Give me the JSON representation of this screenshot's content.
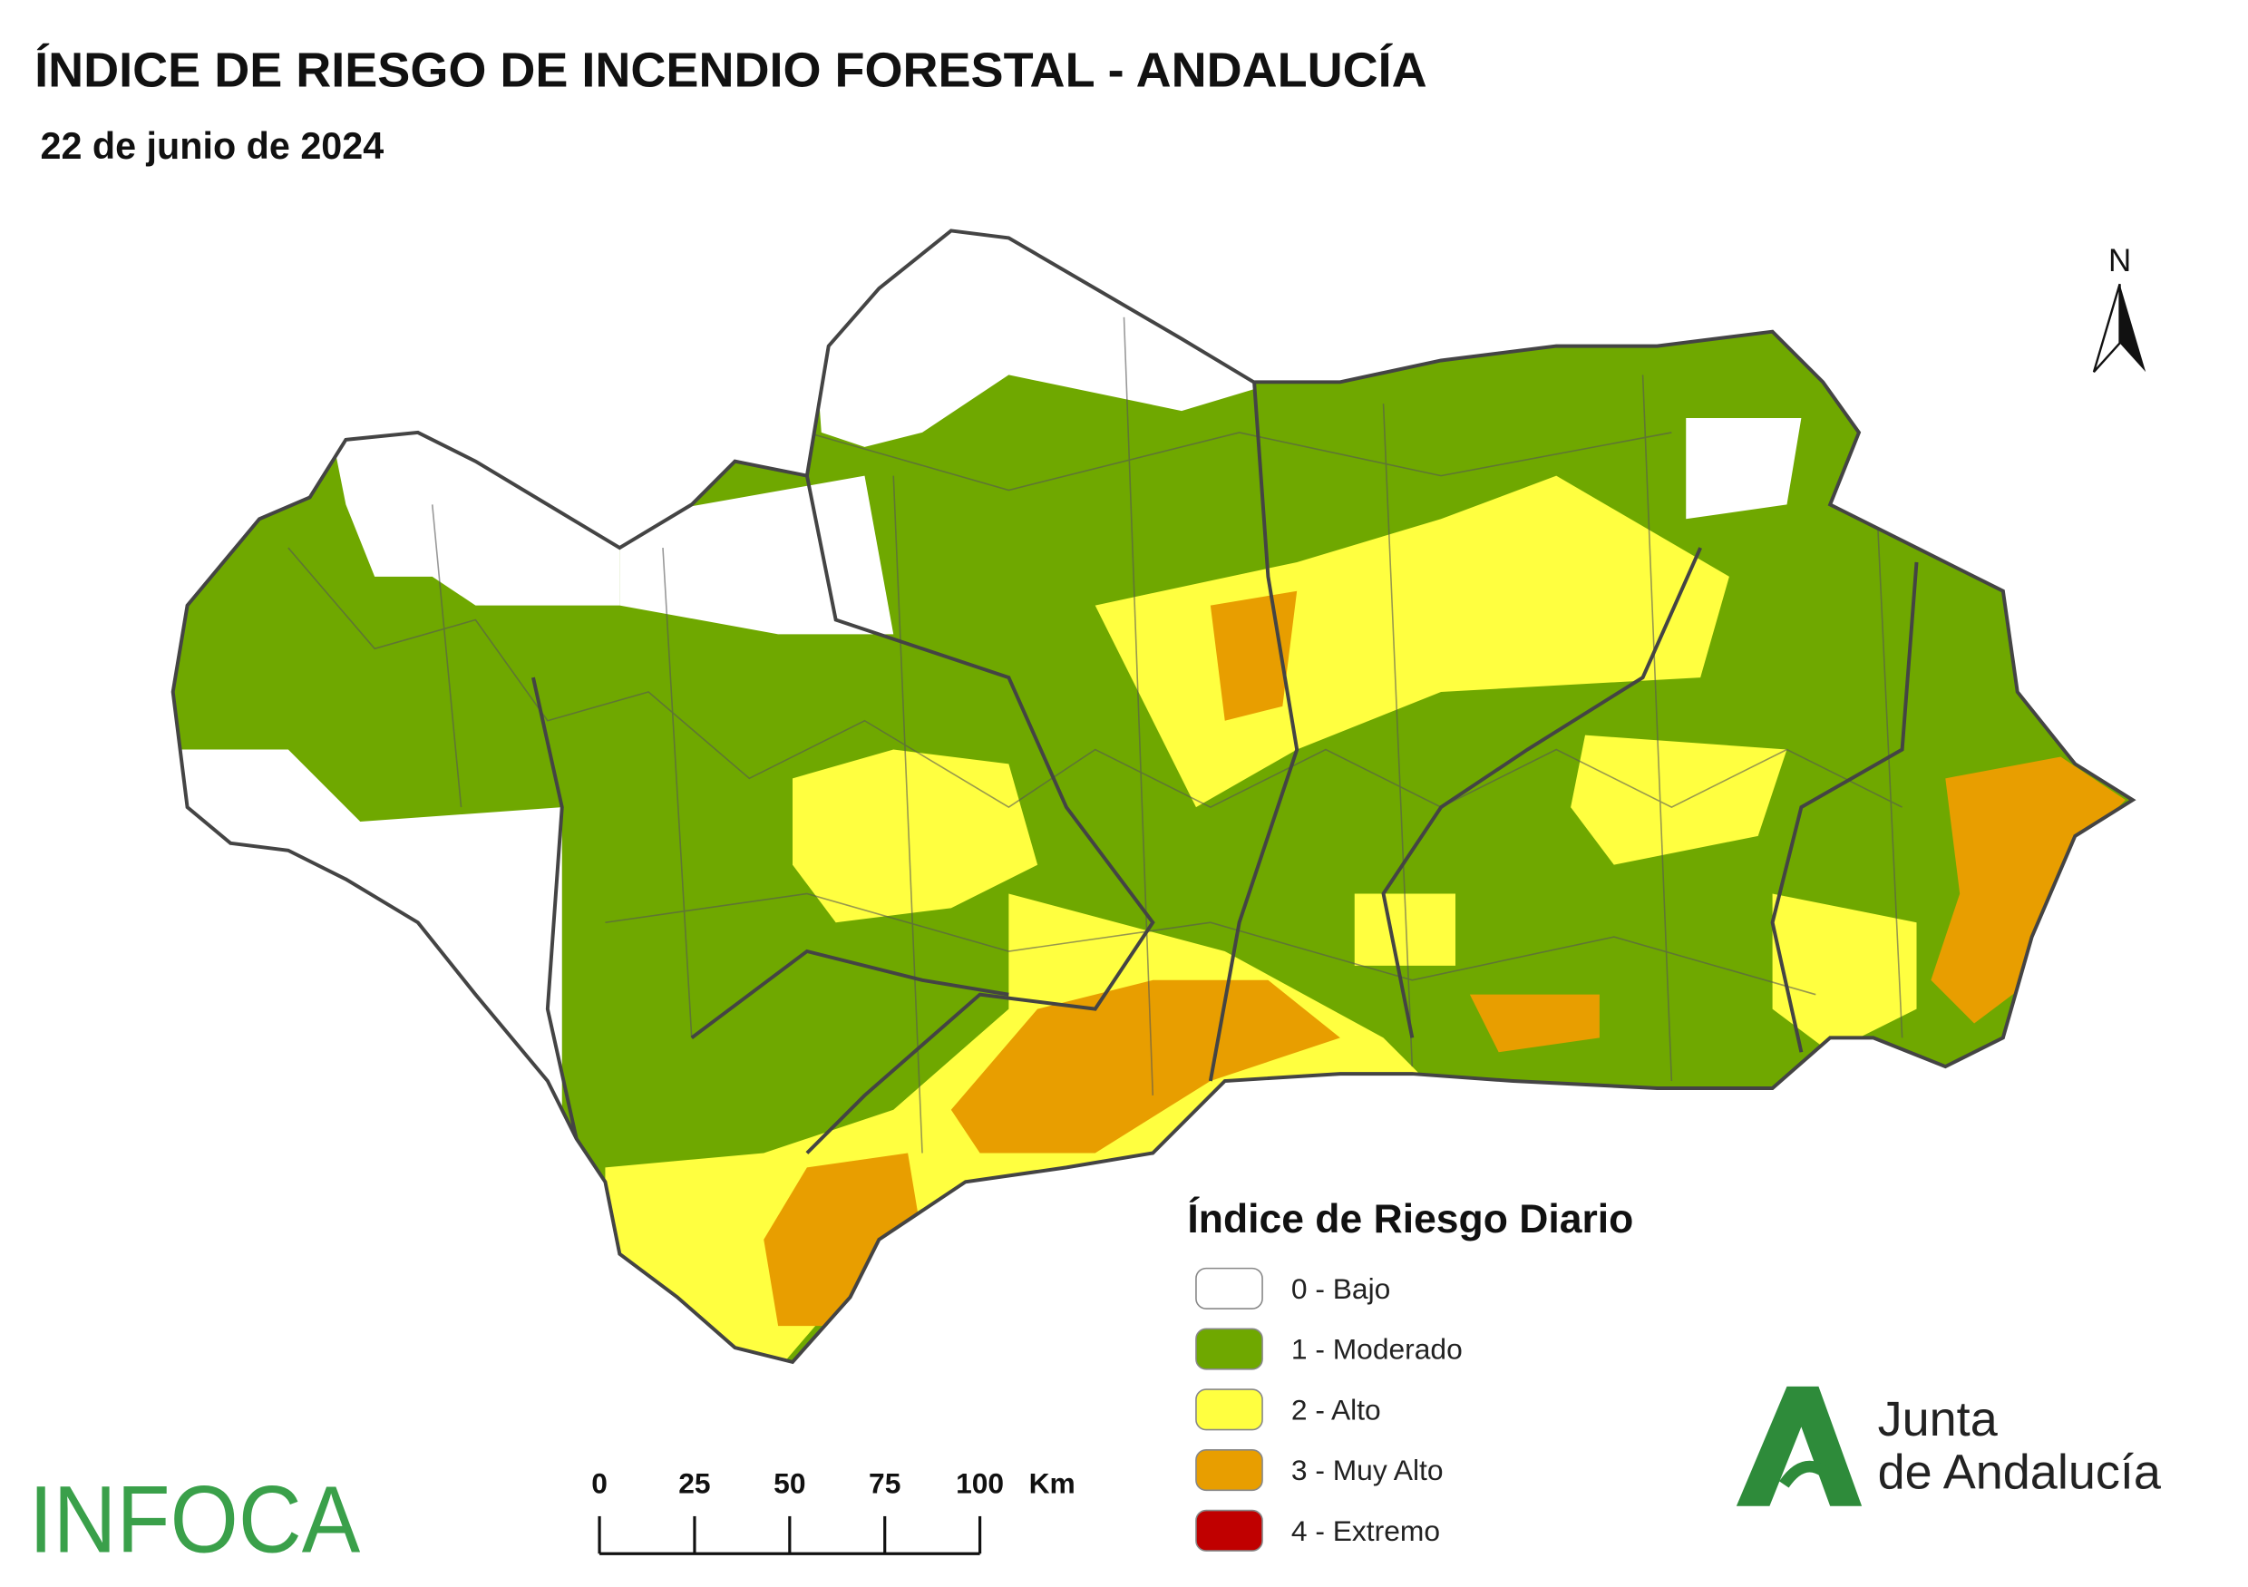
{
  "header": {
    "title": "ÍNDICE DE RIESGO DE INCENDIO FORESTAL - ANDALUCÍA",
    "subtitle": "22 de junio de 2024"
  },
  "map": {
    "north_label": "N"
  },
  "legend": {
    "title": "Índice de Riesgo Diario",
    "items": [
      {
        "label": "0 - Bajo",
        "color": "#ffffff"
      },
      {
        "label": "1 - Moderado",
        "color": "#6fa800"
      },
      {
        "label": "2 - Alto",
        "color": "#ffff40"
      },
      {
        "label": "3 - Muy Alto",
        "color": "#e89e00"
      },
      {
        "label": "4 - Extremo",
        "color": "#c00000"
      }
    ]
  },
  "scale_bar": {
    "ticks": [
      0,
      25,
      50,
      75,
      100
    ],
    "unit": "Km"
  },
  "logos": {
    "infoca": "INFOCA",
    "junta_line1": "Junta",
    "junta_line2": "de Andalucía"
  }
}
